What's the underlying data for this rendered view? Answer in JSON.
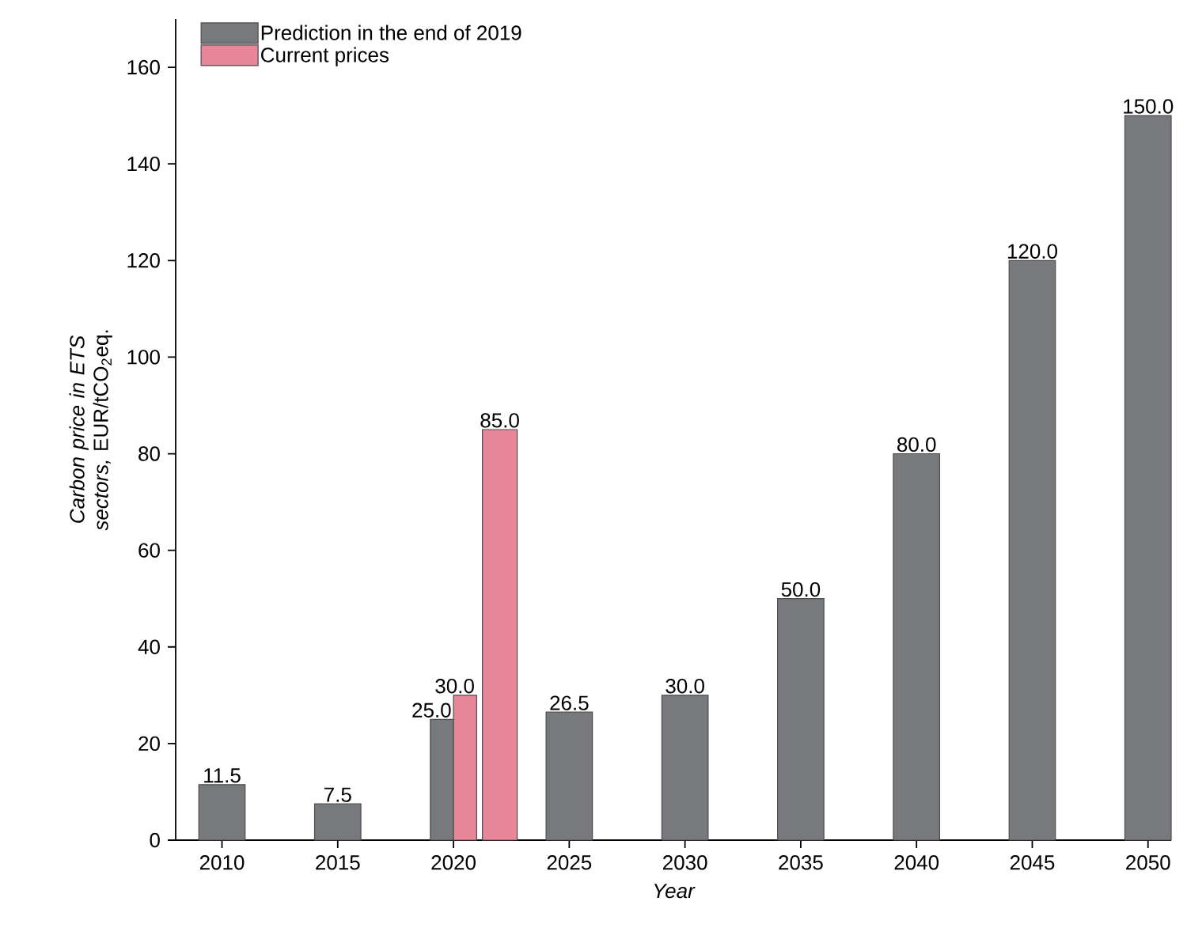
{
  "chart_data": {
    "type": "bar",
    "xlabel": "Year",
    "ylabel": "*Carbon price in ETS sectors,* EUR/tCO$_{2}$eq.",
    "xlim": [
      2008,
      2051
    ],
    "xticks": [
      2010,
      2015,
      2020,
      2025,
      2030,
      2035,
      2040,
      2045,
      2050
    ],
    "ylim": [
      0,
      170
    ],
    "yticks": [
      0,
      20,
      40,
      60,
      80,
      100,
      120,
      140,
      160
    ],
    "legend": "top left",
    "grid": false,
    "series": [
      {
        "name": "Prediction in the end of 2019",
        "color": "#77797c",
        "x": [
          2010,
          2015,
          2019.5,
          2025,
          2030,
          2035,
          2040,
          2045,
          2050
        ],
        "values": [
          11.5,
          7.5,
          25.0,
          26.5,
          30.0,
          50.0,
          80.0,
          120.0,
          150.0
        ],
        "value_labels": [
          "11.5",
          "7.5",
          "25.0",
          "26.5",
          "30.0",
          "50.0",
          "80.0",
          "120.0",
          "150.0"
        ]
      },
      {
        "name": "Current prices",
        "color": "#e8879a",
        "x": [
          2020.5,
          2022
        ],
        "values": [
          30.0,
          85.0
        ],
        "value_labels": [
          "30.0",
          "85.0"
        ]
      }
    ]
  }
}
